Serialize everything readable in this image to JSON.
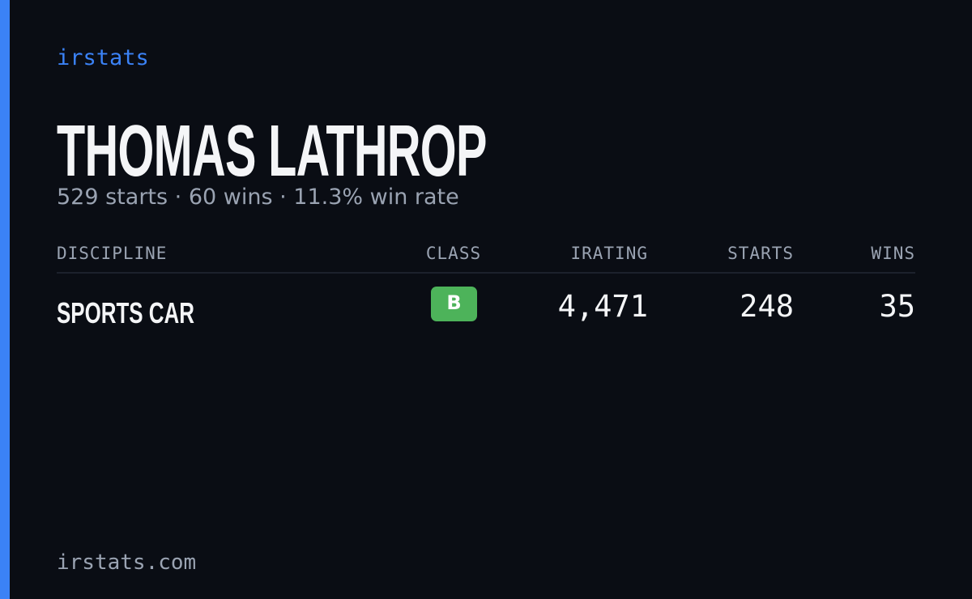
{
  "brand": "irstats",
  "name": "THOMAS LATHROP",
  "summary": "529 starts · 60 wins · 11.3% win rate",
  "table": {
    "headers": [
      "DISCIPLINE",
      "CLASS",
      "IRATING",
      "STARTS",
      "WINS"
    ],
    "rows": [
      [
        "SPORTS CAR",
        "B",
        "4,471",
        "248",
        "35"
      ]
    ]
  },
  "footer": "irstats.com"
}
